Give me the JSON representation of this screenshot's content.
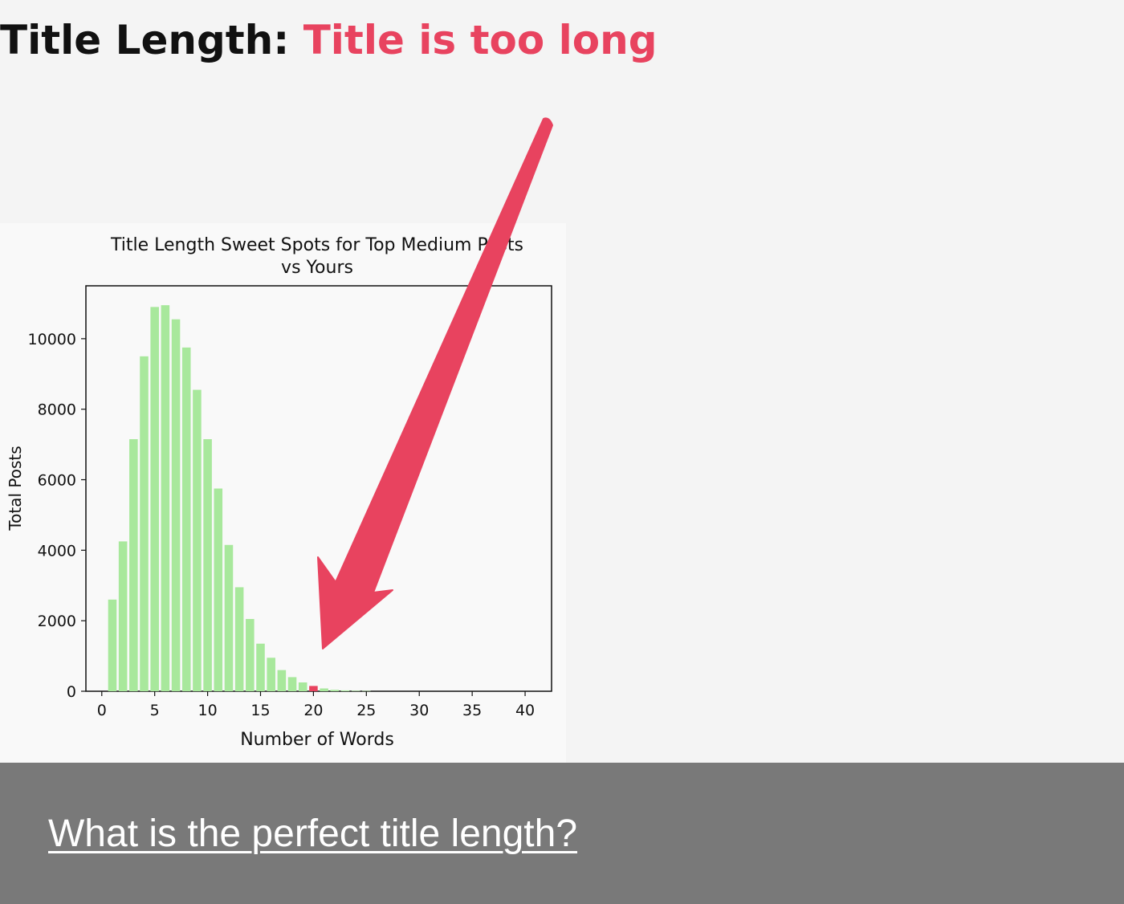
{
  "header": {
    "label": "Title Length:",
    "status": "Title is too long",
    "status_color": "#e8435f"
  },
  "chart_data": {
    "type": "bar",
    "title": "Title Length Sweet Spots for Top Medium Posts",
    "title_line2": "vs Yours",
    "xlabel": "Number of Words",
    "ylabel": "Total Posts",
    "xlim": [
      -1.5,
      42.5
    ],
    "ylim": [
      0,
      11500
    ],
    "xticks": [
      0,
      5,
      10,
      15,
      20,
      25,
      30,
      35,
      40
    ],
    "yticks": [
      0,
      2000,
      4000,
      6000,
      8000,
      10000
    ],
    "x": [
      1,
      2,
      3,
      4,
      5,
      6,
      7,
      8,
      9,
      10,
      11,
      12,
      13,
      14,
      15,
      16,
      17,
      18,
      19,
      20,
      21,
      22,
      23,
      24,
      25
    ],
    "values": [
      2600,
      4250,
      7150,
      9500,
      10900,
      10950,
      10550,
      9750,
      8550,
      7150,
      5750,
      4150,
      2950,
      2050,
      1350,
      950,
      600,
      400,
      250,
      150,
      80,
      40,
      25,
      15,
      10
    ],
    "bar_color": "#a8e89c",
    "highlight": {
      "x": 20,
      "color": "#e8435f"
    },
    "grid": false,
    "legend": "none"
  },
  "annotation": {
    "type": "arrow",
    "color": "#e8435f",
    "points_to": "highlighted-bar"
  },
  "footer": {
    "link_text": "What is the perfect title length?"
  }
}
